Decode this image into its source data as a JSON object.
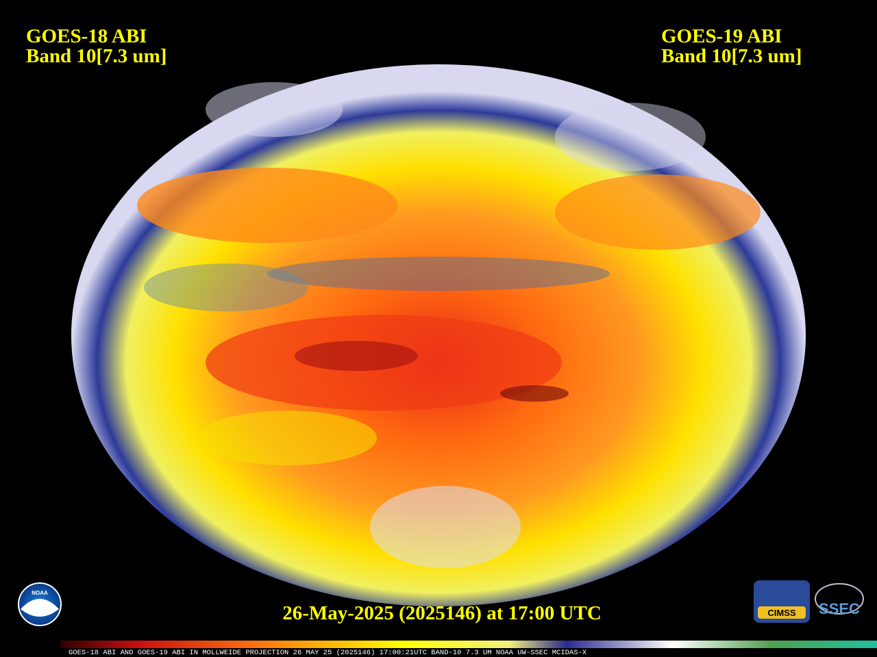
{
  "left_label": {
    "satellite": "GOES-18 ABI",
    "band": "Band 10[7.3 um]"
  },
  "right_label": {
    "satellite": "GOES-19 ABI",
    "band": "Band 10[7.3 um]"
  },
  "timestamp": "26-May-2025 (2025146) at 17:00 UTC",
  "footer": "GOES-18 ABI AND GOES-19 ABI IN MOLLWEIDE PROJECTION 26 MAY 25 (2025146) 17:00:21UTC BAND-10 7.3 UM NOAA UW-SSEC MCIDAS-X",
  "logos": {
    "noaa": "NOAA",
    "cimss": "CIMSS",
    "ssec": "SSEC"
  }
}
